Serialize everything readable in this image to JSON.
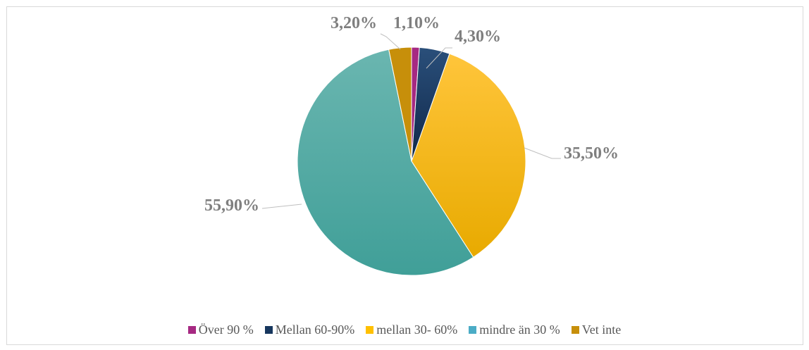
{
  "chart_data": {
    "type": "pie",
    "title": "",
    "slices": [
      {
        "label": "Över 90 %",
        "value": 1.1,
        "display": "1,10%",
        "color": "#a62982"
      },
      {
        "label": "Mellan 60-90%",
        "value": 4.3,
        "display": "4,30%",
        "color": "#17375e"
      },
      {
        "label": "mellan 30- 60%",
        "value": 35.5,
        "display": "35,50%",
        "color": "#ffc000"
      },
      {
        "label": "mindre än 30 %",
        "value": 55.9,
        "display": "55,90%",
        "color": "#4bacc6"
      },
      {
        "label": "Vet inte",
        "value": 3.2,
        "display": "3,20%",
        "color": "#c78f0a"
      }
    ],
    "legend_position": "bottom"
  }
}
